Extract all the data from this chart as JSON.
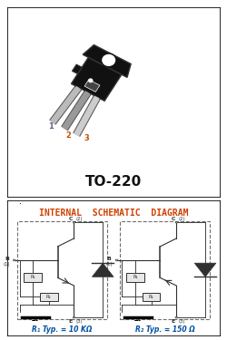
{
  "title_top": "TO-220",
  "title_bottom": "INTERNAL  SCHEMATIC  DIAGRAM",
  "r1_label": "R₁ Typ. = 10 KΩ",
  "r2_label": "R₂ Typ. = 150 Ω",
  "bg_color": "#ffffff",
  "border_color": "#000000",
  "title_color_orange": "#d04000",
  "label_color_blue": "#0050a0",
  "pin_color_1": "#6060a0",
  "pin_color_2": "#c05000",
  "pin_color_3": "#c05000",
  "body_color": "#111111",
  "body_outline": "#333333",
  "lead_color_light": "#c0c0c0",
  "lead_color_dark": "#808080",
  "schematic_line": "#404040",
  "diode_color": "#303030",
  "dashed_color": "#707070",
  "transistor_gray": "#909090",
  "ground_black": "#000000"
}
